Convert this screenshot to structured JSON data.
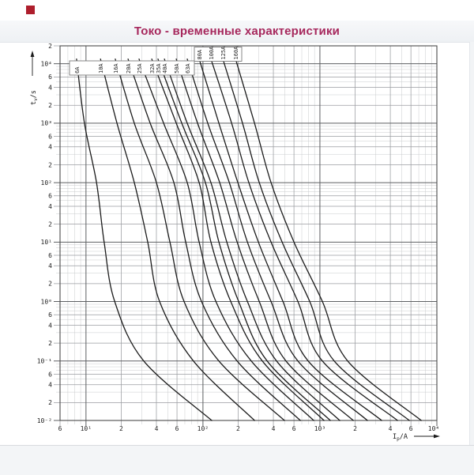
{
  "header": {
    "title": "Токо - временные характеристики",
    "title_color": "#a6275c",
    "logo_color": "#ae1e2c"
  },
  "chart_data": {
    "type": "line",
    "title": "Токо - временные характеристики",
    "description": "Time-current melting characteristics of fuse links, log-log scales",
    "xlabel": "Ip/A",
    "ylabel": "tv/s",
    "x_axis": {
      "label_parts": [
        "I",
        "p",
        "/A"
      ],
      "scale": "log",
      "range": [
        6,
        10000
      ],
      "ticks": [
        [
          6,
          "6"
        ],
        [
          10,
          "10¹"
        ],
        [
          20,
          "2"
        ],
        [
          40,
          "4"
        ],
        [
          60,
          "6"
        ],
        [
          100,
          "10²"
        ],
        [
          200,
          "2"
        ],
        [
          400,
          "4"
        ],
        [
          600,
          "6"
        ],
        [
          1000,
          "10³"
        ],
        [
          2000,
          "2"
        ],
        [
          4000,
          "4"
        ],
        [
          6000,
          "6"
        ],
        [
          10000,
          "10⁴"
        ]
      ]
    },
    "y_axis": {
      "label_parts": [
        "t",
        "v",
        "/s"
      ],
      "scale": "log",
      "range": [
        0.01,
        20000
      ],
      "ticks": [
        [
          20000,
          "2"
        ],
        [
          10000,
          "10⁴"
        ],
        [
          6000,
          "6"
        ],
        [
          4000,
          "4"
        ],
        [
          2000,
          "2"
        ],
        [
          1000,
          "10³"
        ],
        [
          600,
          "6"
        ],
        [
          400,
          "4"
        ],
        [
          200,
          "2"
        ],
        [
          100,
          "10²"
        ],
        [
          60,
          "6"
        ],
        [
          40,
          "4"
        ],
        [
          20,
          "2"
        ],
        [
          10,
          "10¹"
        ],
        [
          6,
          "6"
        ],
        [
          4,
          "4"
        ],
        [
          2,
          "2"
        ],
        [
          1,
          "10⁰"
        ],
        [
          0.6,
          "6"
        ],
        [
          0.4,
          "4"
        ],
        [
          0.2,
          "2"
        ],
        [
          0.1,
          "10⁻¹"
        ],
        [
          0.06,
          "6"
        ],
        [
          0.04,
          "4"
        ],
        [
          0.02,
          "2"
        ],
        [
          0.01,
          "10⁻²"
        ]
      ]
    },
    "grid": "on",
    "legend_position": "top label boxes",
    "curve_color": "#1b1b1b",
    "times_s": [
      12000,
      1000,
      100,
      10,
      1,
      0.1,
      0.01
    ],
    "series": [
      {
        "name": "6A",
        "currents_A": [
          8.3,
          9.7,
          12.3,
          14.3,
          17.6,
          31.2,
          119
        ]
      },
      {
        "name": "10A",
        "currents_A": [
          13.3,
          18.4,
          25.9,
          33.7,
          42.6,
          83,
          276
        ]
      },
      {
        "name": "16A",
        "currents_A": [
          17.8,
          25.9,
          40,
          52.2,
          69,
          137,
          498
        ]
      },
      {
        "name": "20A",
        "currents_A": [
          22.9,
          35.4,
          56.4,
          71.2,
          97.2,
          196,
          680
        ]
      },
      {
        "name": "25A",
        "currents_A": [
          28.4,
          46.1,
          73.4,
          92.8,
          129,
          259,
          885
        ]
      },
      {
        "name": "32A",
        "currents_A": [
          36.5,
          59.1,
          92.8,
          117,
          173,
          322,
          1084
        ]
      },
      {
        "name": "35A",
        "currents_A": [
          41.3,
          65.9,
          105,
          137,
          202,
          354,
          1227
        ]
      },
      {
        "name": "40A",
        "currents_A": [
          46.8,
          73.4,
          117,
          160,
          240,
          426,
          1479
        ]
      },
      {
        "name": "50A",
        "currents_A": [
          59.1,
          89.9,
          139,
          196,
          303,
          513,
          1928
        ]
      },
      {
        "name": "63A",
        "currents_A": [
          73.4,
          110,
          168,
          240,
          382,
          648,
          2550
        ]
      },
      {
        "name": "80A",
        "currents_A": [
          92.8,
          137,
          199,
          298,
          483,
          794,
          3374
        ]
      },
      {
        "name": "100A",
        "currents_A": [
          117,
          176,
          247,
          382,
          648,
          1051,
          4606
        ]
      },
      {
        "name": "125A",
        "currents_A": [
          148,
          218,
          303,
          475,
          819,
          1327,
          5816
        ]
      },
      {
        "name": "160A",
        "currents_A": [
          190,
          276,
          382,
          600,
          1051,
          1728,
          7346
        ]
      }
    ],
    "label_boxes": [
      {
        "labels": [
          "6A",
          "10A",
          "16A",
          "20A",
          "25A",
          "32A",
          "35A",
          "40A",
          "50A",
          "63A"
        ]
      },
      {
        "labels": [
          "80A",
          "100A",
          "125A",
          "160A"
        ]
      }
    ]
  }
}
